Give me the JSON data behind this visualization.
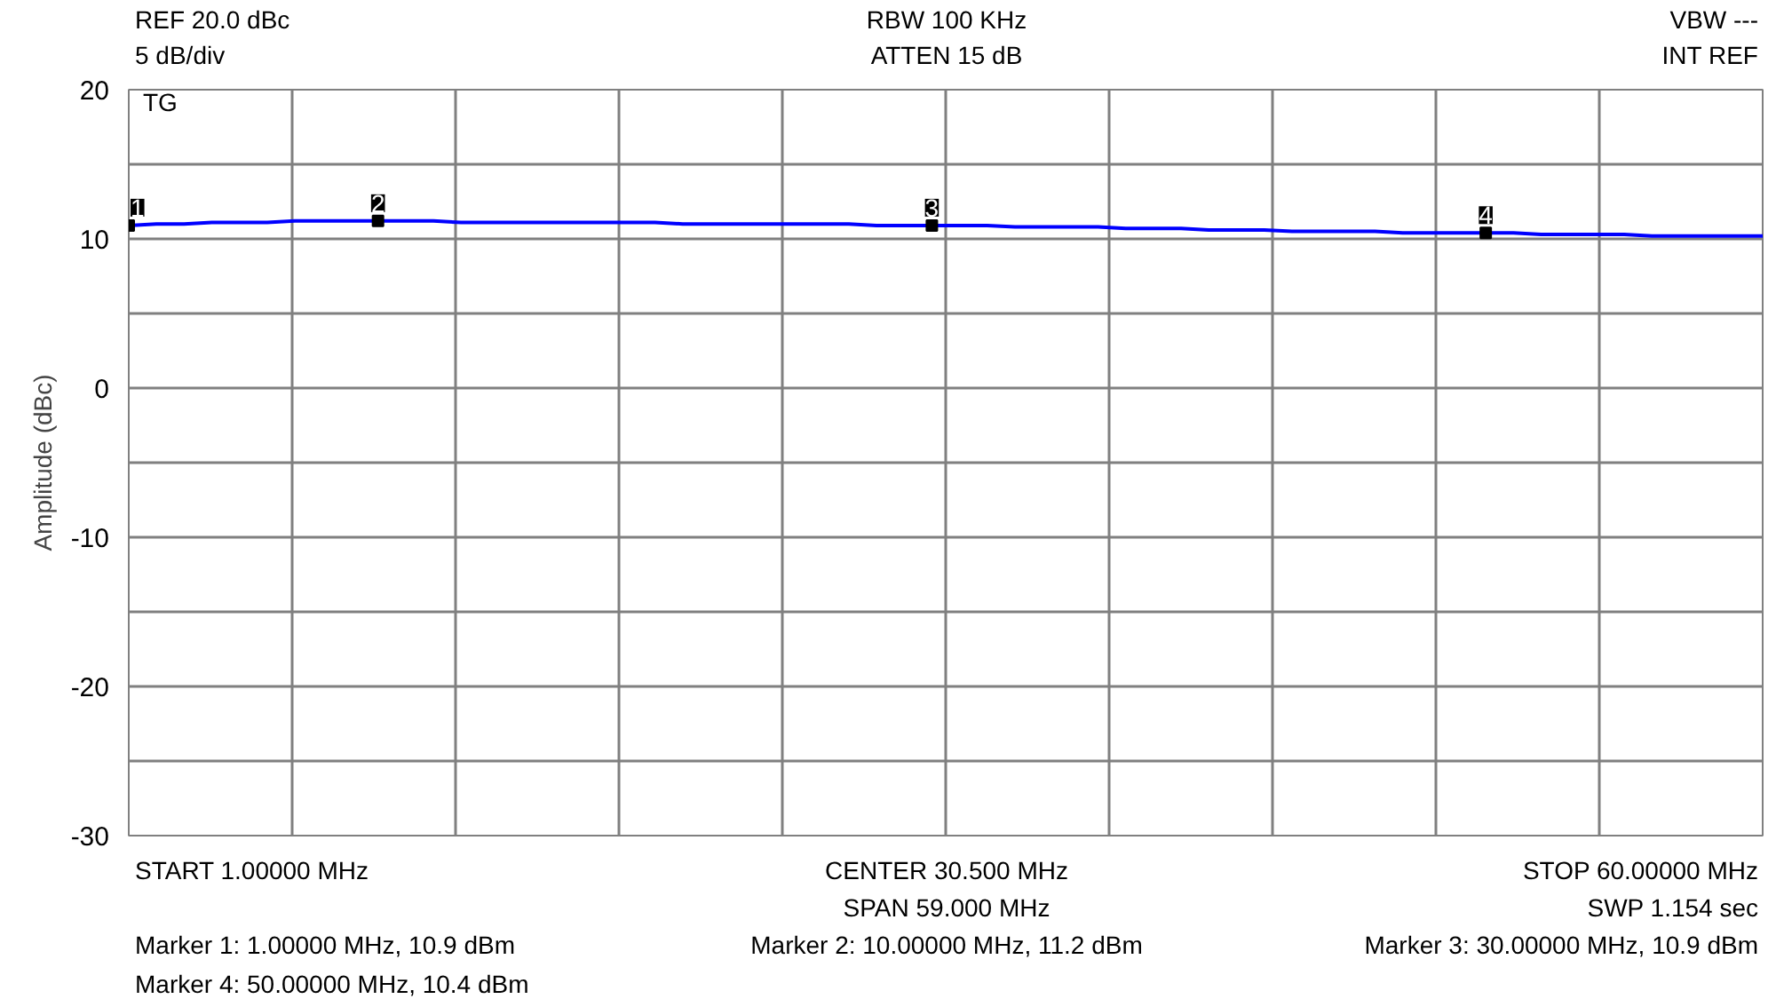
{
  "chart_data": {
    "type": "line",
    "ylabel": "Amplitude (dBc)",
    "categories": [
      null,
      null,
      null,
      null,
      null,
      null,
      null,
      null,
      null,
      null,
      null,
      null,
      null,
      null,
      null,
      null,
      null,
      null,
      null,
      null,
      null,
      null,
      null,
      null,
      null,
      null,
      null,
      null,
      null,
      null,
      null,
      null,
      null,
      null,
      null,
      null,
      null,
      null,
      null,
      null,
      null,
      null,
      null,
      null,
      null,
      null,
      null,
      null,
      null,
      null,
      null,
      null,
      null,
      null,
      null,
      null,
      null,
      null,
      null,
      null
    ],
    "series": [
      {
        "color": "#0000ff",
        "values": [
          10.9,
          11.0,
          11.0,
          11.1,
          11.1,
          11.1,
          11.2,
          11.2,
          11.2,
          11.2,
          11.2,
          11.2,
          11.1,
          11.1,
          11.1,
          11.1,
          11.1,
          11.1,
          11.1,
          11.1,
          11.0,
          11.0,
          11.0,
          11.0,
          11.0,
          11.0,
          11.0,
          10.9,
          10.9,
          10.9,
          10.9,
          10.9,
          10.8,
          10.8,
          10.8,
          10.8,
          10.7,
          10.7,
          10.7,
          10.6,
          10.6,
          10.6,
          10.5,
          10.5,
          10.5,
          10.5,
          10.4,
          10.4,
          10.4,
          10.4,
          10.4,
          10.3,
          10.3,
          10.3,
          10.3,
          10.2,
          10.2,
          10.2,
          10.2,
          10.2
        ]
      },
      {
        "type": "scatter",
        "color": "#000000",
        "marker": "square",
        "values": [
          10.9,
          null,
          null,
          null,
          null,
          null,
          null,
          null,
          null,
          11.2,
          null,
          null,
          null,
          null,
          null,
          null,
          null,
          null,
          null,
          null,
          null,
          null,
          null,
          null,
          null,
          null,
          null,
          null,
          null,
          10.9,
          null,
          null,
          null,
          null,
          null,
          null,
          null,
          null,
          null,
          null,
          null,
          null,
          null,
          null,
          null,
          null,
          null,
          null,
          null,
          10.4,
          null,
          null,
          null,
          null,
          null,
          null,
          null,
          null,
          null,
          null
        ]
      }
    ],
    "ylim": [
      -30,
      20
    ],
    "yticks": [
      -30,
      {
        "value": -25,
        "label": null
      },
      -20,
      {
        "value": -15,
        "label": null
      },
      -10,
      {
        "value": -5,
        "label": null
      },
      0,
      {
        "value": 5,
        "label": null
      },
      10,
      {
        "value": 15,
        "label": null
      },
      20
    ],
    "grid": true,
    "tick_labels": "y",
    "marker": "none",
    "line_style": "solid",
    "annotations": [
      "REF 20.0 dBc",
      "5 dB/div",
      "RBW 100 KHz",
      "ATTEN 15 dB",
      "VBW ---",
      "INT REF",
      "TG",
      "START 1.00000 MHz",
      "CENTER 30.500 MHz",
      "STOP 60.00000 MHz",
      "SPAN 59.000 MHz",
      "SWP 1.154 sec",
      "Marker 1: 1.00000 MHz, 10.9 dBm",
      "Marker 2: 10.00000 MHz, 11.2 dBm",
      "Marker 3: 30.00000 MHz, 10.9 dBm",
      "Marker 4: 50.00000 MHz, 10.4 dBm",
      "1",
      "2",
      "3",
      "4"
    ]
  }
}
